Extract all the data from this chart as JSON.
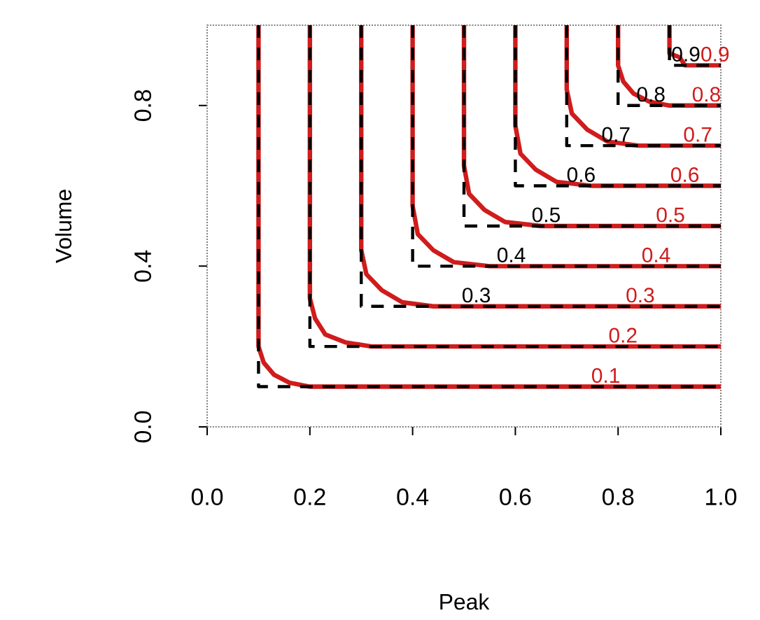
{
  "chart_data": {
    "type": "line",
    "xlabel": "Peak",
    "ylabel": "Volume",
    "xlim": [
      0,
      1
    ],
    "ylim": [
      0,
      1
    ],
    "xticks": [
      {
        "value": 0,
        "label": "0.0"
      },
      0.2,
      0.4,
      0.6,
      0.8,
      {
        "value": 1,
        "label": "1.0"
      }
    ],
    "yticks": [
      {
        "value": 0,
        "label": "0.0"
      },
      0.4,
      0.8
    ],
    "grid": false,
    "legend": false,
    "marker": "none",
    "series": [
      {
        "color": "#000000",
        "line_style": "dashed",
        "x": [
          0.1,
          0.1,
          1
        ],
        "values": [
          1,
          0.1,
          0.1
        ]
      },
      {
        "color": "#000000",
        "line_style": "dashed",
        "x": [
          0.2,
          0.2,
          1
        ],
        "values": [
          1,
          0.2,
          0.2
        ]
      },
      {
        "name": "0.3",
        "color": "#000000",
        "line_style": "dashed",
        "x": [
          0.3,
          0.3,
          1
        ],
        "values": [
          1,
          0.3,
          0.3
        ]
      },
      {
        "name": "0.4",
        "color": "#000000",
        "line_style": "dashed",
        "x": [
          0.4,
          0.4,
          1
        ],
        "values": [
          1,
          0.4,
          0.4
        ]
      },
      {
        "name": "0.5",
        "color": "#000000",
        "line_style": "dashed",
        "x": [
          0.5,
          0.5,
          1
        ],
        "values": [
          1,
          0.5,
          0.5
        ]
      },
      {
        "name": "0.6",
        "color": "#000000",
        "line_style": "dashed",
        "x": [
          0.6,
          0.6,
          1
        ],
        "values": [
          1,
          0.6,
          0.6
        ]
      },
      {
        "name": "0.7",
        "color": "#000000",
        "line_style": "dashed",
        "x": [
          0.7,
          0.7,
          1
        ],
        "values": [
          1,
          0.7,
          0.7
        ]
      },
      {
        "name": "0.8",
        "color": "#000000",
        "line_style": "dashed",
        "x": [
          0.8,
          0.8,
          1
        ],
        "values": [
          1,
          0.8,
          0.8
        ]
      },
      {
        "name": "0.9",
        "color": "#000000",
        "line_style": "dashed",
        "x": [
          0.9,
          0.9,
          1
        ],
        "values": [
          1,
          0.9,
          0.9
        ]
      },
      {
        "name": "0.1",
        "color": "#d01c1c",
        "line_style": "solid",
        "x": [
          0.1,
          0.1,
          0.11,
          0.13,
          0.16,
          0.2,
          1
        ],
        "values": [
          1,
          0.2,
          0.16,
          0.13,
          0.11,
          0.1,
          0.1
        ]
      },
      {
        "name": "0.2",
        "color": "#d01c1c",
        "line_style": "solid",
        "x": [
          0.2,
          0.2,
          0.21,
          0.23,
          0.27,
          0.32,
          1
        ],
        "values": [
          1,
          0.32,
          0.27,
          0.23,
          0.21,
          0.2,
          0.2
        ]
      },
      {
        "name": "0.3",
        "color": "#d01c1c",
        "line_style": "solid",
        "x": [
          0.3,
          0.3,
          0.31,
          0.34,
          0.38,
          0.44,
          1
        ],
        "values": [
          1,
          0.44,
          0.38,
          0.34,
          0.31,
          0.3,
          0.3
        ]
      },
      {
        "name": "0.4",
        "color": "#d01c1c",
        "line_style": "solid",
        "x": [
          0.4,
          0.4,
          0.41,
          0.44,
          0.48,
          0.55,
          1
        ],
        "values": [
          1,
          0.55,
          0.48,
          0.44,
          0.41,
          0.4,
          0.4
        ]
      },
      {
        "name": "0.5",
        "color": "#d01c1c",
        "line_style": "solid",
        "x": [
          0.5,
          0.5,
          0.51,
          0.54,
          0.58,
          0.65,
          1
        ],
        "values": [
          1,
          0.65,
          0.58,
          0.54,
          0.51,
          0.5,
          0.5
        ]
      },
      {
        "name": "0.6",
        "color": "#d01c1c",
        "line_style": "solid",
        "x": [
          0.6,
          0.6,
          0.61,
          0.64,
          0.68,
          0.75,
          1
        ],
        "values": [
          1,
          0.75,
          0.68,
          0.64,
          0.61,
          0.6,
          0.6
        ]
      },
      {
        "name": "0.7",
        "color": "#d01c1c",
        "line_style": "solid",
        "x": [
          0.7,
          0.7,
          0.71,
          0.74,
          0.78,
          0.84,
          1
        ],
        "values": [
          1,
          0.84,
          0.78,
          0.74,
          0.71,
          0.7,
          0.7
        ]
      },
      {
        "name": "0.8",
        "color": "#d01c1c",
        "line_style": "solid",
        "x": [
          0.8,
          0.8,
          0.81,
          0.83,
          0.86,
          0.9,
          1
        ],
        "values": [
          1,
          0.9,
          0.86,
          0.83,
          0.81,
          0.8,
          0.8
        ]
      },
      {
        "name": "0.9",
        "color": "#d01c1c",
        "line_style": "solid",
        "x": [
          0.9,
          0.9,
          0.9,
          0.92,
          0.93,
          0.96,
          1
        ],
        "values": [
          1,
          0.96,
          0.93,
          0.92,
          0.9,
          0.9,
          0.9
        ]
      }
    ]
  }
}
